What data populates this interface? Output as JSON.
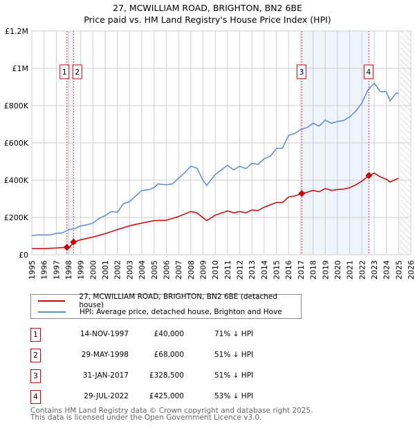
{
  "chart_data": {
    "type": "line",
    "title": "27, MCWILLIAM ROAD, BRIGHTON, BN2 6BE",
    "subtitle": "Price paid vs. HM Land Registry's House Price Index (HPI)",
    "xlim": [
      1995,
      2026
    ],
    "ylim": [
      0,
      1200000
    ],
    "x_ticks": [
      "1995",
      "1996",
      "1997",
      "1998",
      "1999",
      "2000",
      "2001",
      "2002",
      "2003",
      "2004",
      "2005",
      "2006",
      "2007",
      "2008",
      "2009",
      "2010",
      "2011",
      "2012",
      "2013",
      "2014",
      "2015",
      "2016",
      "2017",
      "2018",
      "2019",
      "2020",
      "2021",
      "2022",
      "2023",
      "2024",
      "2025",
      "2026"
    ],
    "y_ticks": [
      {
        "v": 0,
        "label": "£0"
      },
      {
        "v": 200000,
        "label": "£200K"
      },
      {
        "v": 400000,
        "label": "£400K"
      },
      {
        "v": 600000,
        "label": "£600K"
      },
      {
        "v": 800000,
        "label": "£800K"
      },
      {
        "v": 1000000,
        "label": "£1M"
      },
      {
        "v": 1200000,
        "label": "£1.2M"
      }
    ],
    "series": [
      {
        "name": "27, MCWILLIAM ROAD, BRIGHTON, BN2 6BE (detached house)",
        "color": "#cc0000",
        "x": [
          1995,
          1996,
          1997,
          1997.87,
          1998.1,
          1998.41,
          1999,
          2000,
          2001,
          2002,
          2003,
          2004,
          2005,
          2006,
          2007,
          2008,
          2008.5,
          2009.3,
          2010,
          2011,
          2011.5,
          2012,
          2012.5,
          2013,
          2013.5,
          2014,
          2015,
          2015.5,
          2016,
          2016.5,
          2017.08,
          2017.5,
          2018,
          2018.5,
          2019,
          2019.5,
          2020,
          2020.5,
          2021,
          2021.5,
          2022,
          2022.57,
          2023,
          2023.5,
          2024,
          2024.3,
          2024.8,
          2025
        ],
        "y": [
          33000,
          33000,
          36000,
          40000,
          40000,
          68000,
          80000,
          95000,
          113000,
          135000,
          155000,
          170000,
          183000,
          185000,
          205000,
          232000,
          225000,
          183000,
          212000,
          235000,
          225000,
          232000,
          225000,
          240000,
          237000,
          255000,
          280000,
          280000,
          310000,
          315000,
          328500,
          335000,
          345000,
          338000,
          355000,
          345000,
          350000,
          352000,
          360000,
          375000,
          395000,
          425000,
          438000,
          418000,
          405000,
          390000,
          405000,
          410000
        ]
      },
      {
        "name": "HPI: Average price, detached house, Brighton and Hove",
        "color": "#5b8bd0",
        "x": [
          1995,
          1995.6,
          1996,
          1996.5,
          1997,
          1997.5,
          1998,
          1998.5,
          1999,
          1999.5,
          2000,
          2000.5,
          2001,
          2001.5,
          2002,
          2002.5,
          2003,
          2003.5,
          2004,
          2004.5,
          2005,
          2005.3,
          2006,
          2006.5,
          2007,
          2007.5,
          2008,
          2008.5,
          2009,
          2009.3,
          2010,
          2010.5,
          2011,
          2011.5,
          2012,
          2012.5,
          2013,
          2013.5,
          2014,
          2014.5,
          2015,
          2015.5,
          2016,
          2016.5,
          2017,
          2017.5,
          2018,
          2018.5,
          2019,
          2019.5,
          2020,
          2020.5,
          2021,
          2021.5,
          2022,
          2022.5,
          2023,
          2023.5,
          2024,
          2024.3,
          2024.8,
          2025
        ],
        "y": [
          102000,
          107000,
          106000,
          106000,
          115000,
          117000,
          135000,
          140000,
          155000,
          160000,
          170000,
          195000,
          210000,
          232000,
          228000,
          275000,
          285000,
          315000,
          345000,
          348000,
          360000,
          380000,
          375000,
          380000,
          410000,
          440000,
          475000,
          465000,
          400000,
          372000,
          430000,
          455000,
          480000,
          455000,
          475000,
          462000,
          490000,
          485000,
          515000,
          528000,
          570000,
          572000,
          640000,
          650000,
          672000,
          682000,
          705000,
          690000,
          722000,
          705000,
          715000,
          720000,
          740000,
          770000,
          815000,
          885000,
          920000,
          875000,
          875000,
          825000,
          868000,
          866000
        ]
      }
    ],
    "sales": [
      {
        "n": "1",
        "x": 1997.87,
        "date": "14-NOV-1997",
        "price": 40000,
        "price_label": "£40,000",
        "hpi": "71% ↓ HPI"
      },
      {
        "n": "2",
        "x": 1998.41,
        "date": "29-MAY-1998",
        "price": 68000,
        "price_label": "£68,000",
        "hpi": "51% ↓ HPI"
      },
      {
        "n": "3",
        "x": 2017.08,
        "date": "31-JAN-2017",
        "price": 328500,
        "price_label": "£328,500",
        "hpi": "51% ↓ HPI"
      },
      {
        "n": "4",
        "x": 2022.57,
        "date": "29-JUL-2022",
        "price": 425000,
        "price_label": "£425,000",
        "hpi": "53% ↓ HPI"
      }
    ],
    "forecast_from": 2025.1
  },
  "footer": {
    "line1": "Contains HM Land Registry data © Crown copyright and database right 2025.",
    "line2": "This data is licensed under the Open Government Licence v3.0."
  }
}
